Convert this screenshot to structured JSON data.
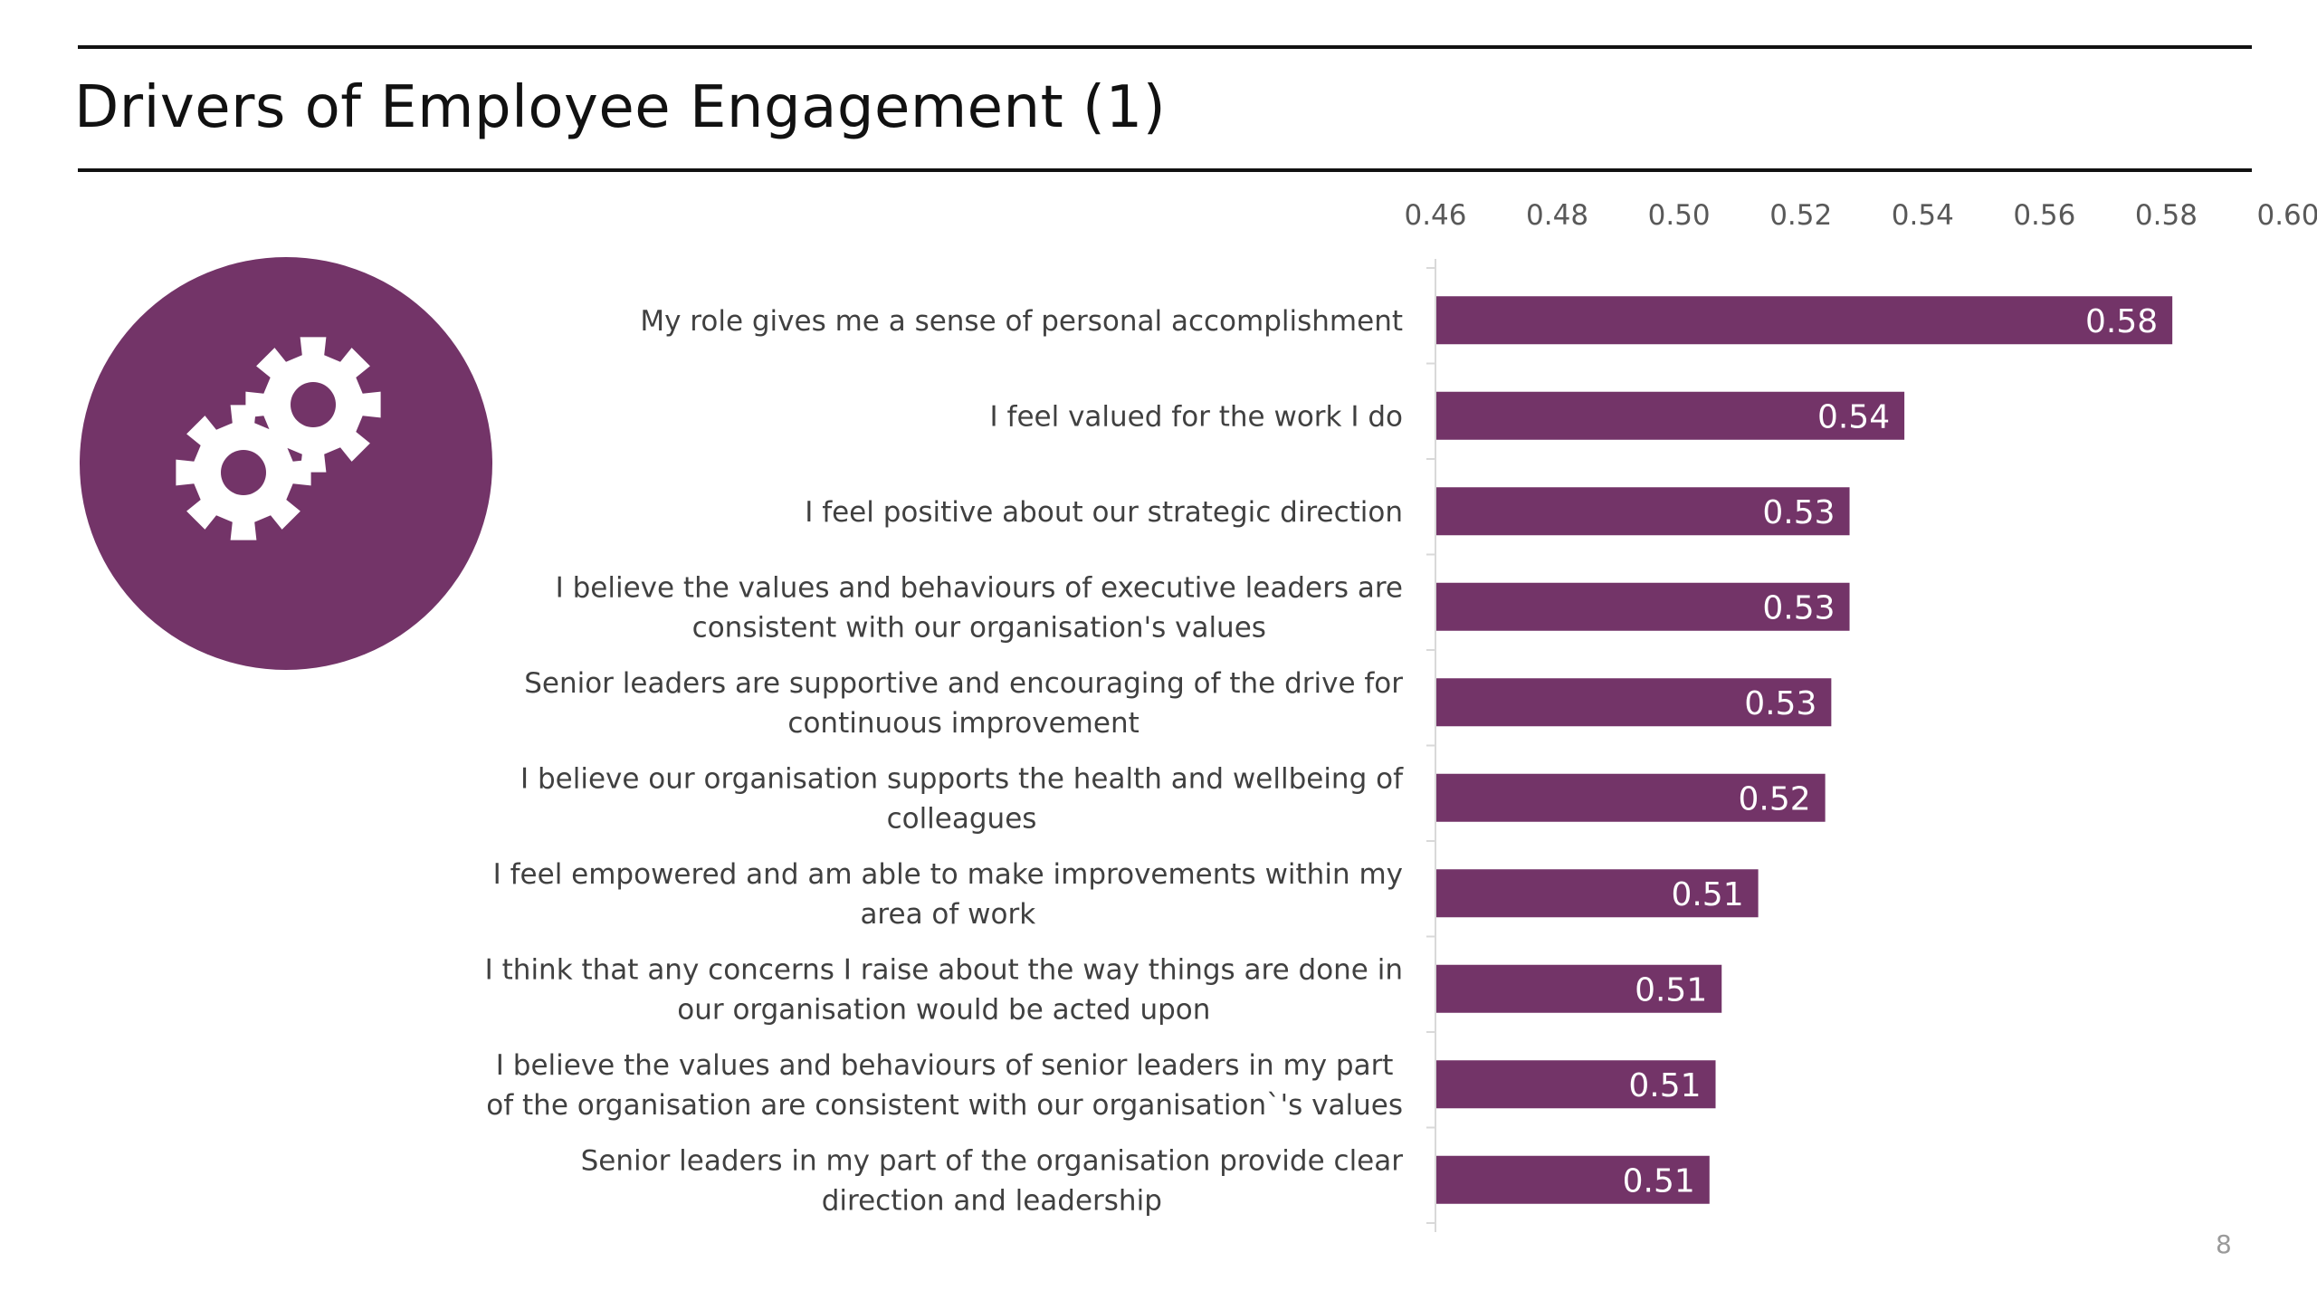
{
  "slide": {
    "title": "Drivers of Employee Engagement (1)",
    "page_number": "8",
    "icon": "gears-icon",
    "accent_color": "#733468"
  },
  "chart_data": {
    "type": "bar",
    "orientation": "horizontal",
    "title": "",
    "xlabel": "",
    "ylabel": "",
    "xlim": [
      0.46,
      0.6
    ],
    "x_ticks": [
      "0.46",
      "0.48",
      "0.50",
      "0.52",
      "0.54",
      "0.56",
      "0.58",
      "0.60"
    ],
    "x_axis_position": "top",
    "grid": false,
    "legend": "none",
    "bar_color": "#733468",
    "categories": [
      [
        "My role gives me a sense of personal accomplishment"
      ],
      [
        "I feel valued for the work I do"
      ],
      [
        "I feel positive about our strategic direction"
      ],
      [
        "I believe the values and behaviours of executive leaders are",
        "consistent with our organisation's values"
      ],
      [
        "Senior leaders are supportive and encouraging of the drive for",
        "continuous improvement"
      ],
      [
        "I believe our organisation supports the health and wellbeing of",
        "colleagues"
      ],
      [
        "I feel empowered and am able to make improvements within my",
        "area of work"
      ],
      [
        "I think that any concerns I raise about the way things are done in",
        "our organisation would be acted upon"
      ],
      [
        "I believe the values and behaviours of senior leaders in my part",
        "of the organisation are consistent with our organisation`'s values"
      ],
      [
        "Senior leaders in my part of the organisation provide clear",
        "direction and leadership"
      ]
    ],
    "values": [
      0.581,
      0.537,
      0.528,
      0.528,
      0.525,
      0.524,
      0.513,
      0.507,
      0.506,
      0.505
    ],
    "data_labels": [
      "0.58",
      "0.54",
      "0.53",
      "0.53",
      "0.53",
      "0.52",
      "0.51",
      "0.51",
      "0.51",
      "0.51"
    ]
  }
}
